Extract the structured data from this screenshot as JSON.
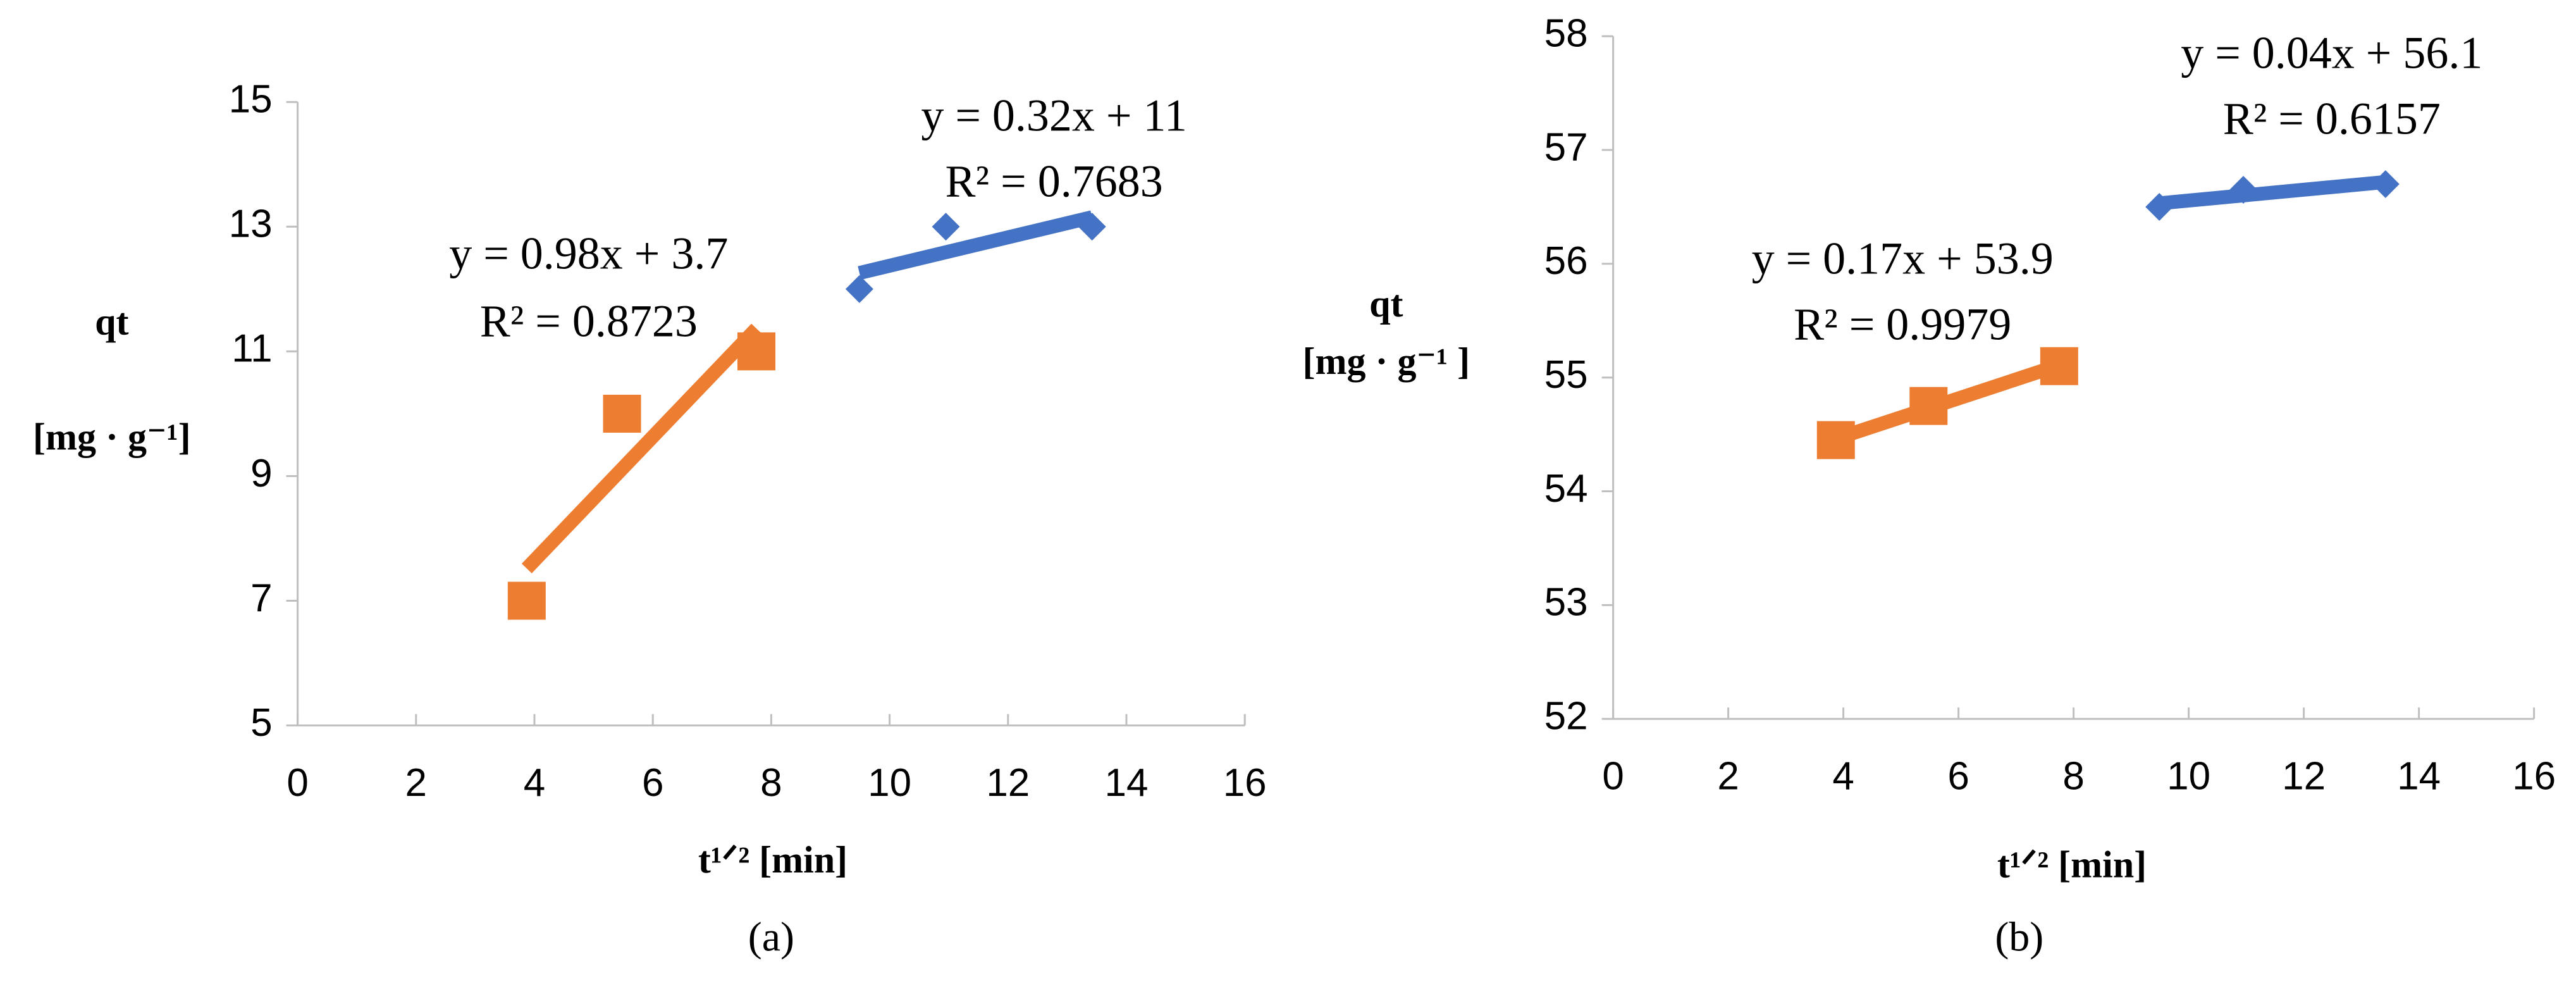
{
  "chart_data": [
    {
      "type": "scatter",
      "panel": "(a)",
      "y_label": [
        "qt",
        "[mg · g⁻¹]"
      ],
      "x_label": "t¹ᐟ² [min]",
      "xlim": [
        0,
        16
      ],
      "xticks": [
        0,
        2,
        4,
        6,
        8,
        10,
        12,
        14,
        16
      ],
      "ylim": [
        5,
        15
      ],
      "yticks": [
        5,
        7,
        9,
        11,
        13,
        15
      ],
      "series": [
        {
          "color": "#ed7d31",
          "marker": "square",
          "trendline": true,
          "x": [
            3.87,
            5.48,
            7.75
          ],
          "values": [
            7,
            10,
            11
          ]
        },
        {
          "color": "#4472c4",
          "marker": "diamond",
          "trendline": true,
          "x": [
            9.49,
            10.95,
            13.42
          ],
          "values": [
            12,
            13,
            13
          ]
        }
      ],
      "annotations": [
        "y = 0.98x + 3.7",
        "R² = 0.8723",
        "y = 0.32x + 11",
        "R² = 0.7683"
      ]
    },
    {
      "type": "scatter",
      "panel": "(b)",
      "y_label": [
        "qt",
        "[mg · g⁻¹ ]"
      ],
      "x_label": "t¹ᐟ² [min]",
      "xlim": [
        0,
        16
      ],
      "xticks": [
        0,
        2,
        4,
        6,
        8,
        10,
        12,
        14,
        16
      ],
      "ylim": [
        52,
        58
      ],
      "yticks": [
        52,
        53,
        54,
        55,
        56,
        57,
        58
      ],
      "series": [
        {
          "color": "#ed7d31",
          "marker": "square",
          "trendline": true,
          "x": [
            3.87,
            5.48,
            7.75
          ],
          "values": [
            54.45,
            54.75,
            55.1
          ]
        },
        {
          "color": "#4472c4",
          "marker": "diamond",
          "trendline": true,
          "x": [
            9.49,
            10.95,
            13.42
          ],
          "values": [
            56.5,
            56.65,
            56.7
          ]
        }
      ],
      "annotations": [
        "y = 0.17x + 53.9",
        "R² = 0.9979",
        "y = 0.04x + 56.1",
        "R² = 0.6157"
      ]
    }
  ]
}
